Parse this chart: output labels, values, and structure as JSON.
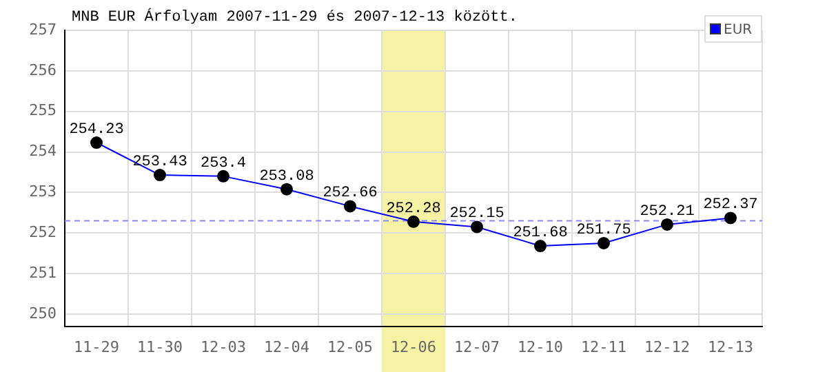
{
  "chart_data": {
    "type": "line",
    "title": "MNB EUR Árfolyam 2007-11-29 és 2007-12-13 között.",
    "categories": [
      "11-29",
      "11-30",
      "12-03",
      "12-04",
      "12-05",
      "12-06",
      "12-07",
      "12-10",
      "12-11",
      "12-12",
      "12-13"
    ],
    "series": [
      {
        "name": "EUR",
        "color": "#0000ff",
        "values": [
          254.23,
          253.43,
          253.4,
          253.08,
          252.66,
          252.28,
          252.15,
          251.68,
          251.75,
          252.21,
          252.37
        ]
      }
    ],
    "ylim": [
      249.7,
      257
    ],
    "yticks": [
      250,
      251,
      252,
      253,
      254,
      255,
      256,
      257
    ],
    "ref_lines": [
      {
        "axis": "y",
        "value": 252.3,
        "color": "#8888ff",
        "line_style": "dashed"
      }
    ],
    "bands": [
      {
        "axis": "x",
        "from": "12-06",
        "to": "12-06",
        "color": "#f6f2a4"
      }
    ],
    "grid": true,
    "legend": "top right",
    "marker": "circle",
    "line_style": "solid",
    "data_labels": true
  }
}
